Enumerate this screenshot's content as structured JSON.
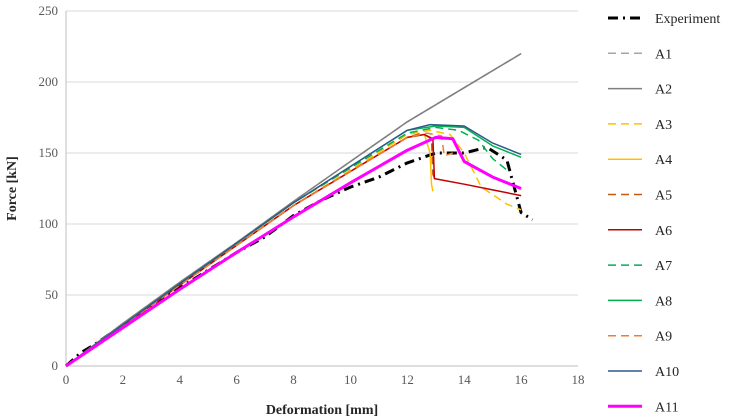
{
  "chart_data": {
    "type": "line",
    "title": "",
    "xlabel": "Deformation [mm]",
    "ylabel": "Force [kN]",
    "xlim": [
      0,
      18
    ],
    "ylim": [
      0,
      250
    ],
    "xticks": [
      "0",
      "2",
      "4",
      "6",
      "8",
      "10",
      "12",
      "14",
      "16",
      "18"
    ],
    "yticks": [
      "0",
      "50",
      "100",
      "150",
      "200",
      "250"
    ],
    "grid": "horizontal",
    "legend": "right",
    "series": [
      {
        "name": "Experiment",
        "color": "#000000",
        "dash": "dashdot",
        "width": 3,
        "x": [
          0,
          0.5,
          1,
          2,
          4,
          6,
          7,
          8,
          9,
          10,
          11,
          12,
          13,
          14,
          14.8,
          15.5,
          16,
          16.4
        ],
        "y": [
          0,
          9,
          15,
          29,
          55,
          80,
          91,
          106,
          117,
          126,
          133,
          143,
          150,
          150,
          154,
          145,
          108,
          103
        ]
      },
      {
        "name": "A1",
        "color": "#a6a6a6",
        "dash": "dash",
        "width": 1.5,
        "x": [
          0,
          2,
          4,
          6,
          8,
          10,
          12,
          14,
          16
        ],
        "y": [
          0,
          30,
          59,
          87,
          116,
          144,
          172,
          196,
          220
        ]
      },
      {
        "name": "A2",
        "color": "#7f7f7f",
        "dash": "solid",
        "width": 1.5,
        "x": [
          0,
          2,
          4,
          6,
          8,
          10,
          12,
          14,
          16
        ],
        "y": [
          0,
          30,
          59,
          87,
          116,
          144,
          172,
          196,
          220
        ]
      },
      {
        "name": "A3",
        "color": "#ffc000",
        "dash": "dash",
        "width": 1.5,
        "x": [
          0,
          4,
          8,
          12,
          12.8,
          13.5,
          14,
          14.6,
          15.5,
          16
        ],
        "y": [
          0,
          57,
          113,
          163,
          166,
          163,
          150,
          126,
          114,
          110
        ]
      },
      {
        "name": "A4",
        "color": "#ffc000",
        "dash": "solid",
        "width": 1.5,
        "x": [
          0,
          4,
          8,
          12,
          12.6,
          12.8,
          12.85,
          12.9
        ],
        "y": [
          0,
          57,
          113,
          161,
          163,
          150,
          128,
          123
        ]
      },
      {
        "name": "A5",
        "color": "#c55a11",
        "dash": "dash",
        "width": 1.5,
        "x": [
          0,
          4,
          8,
          12,
          12.5,
          12.85,
          12.9,
          13.0
        ],
        "y": [
          0,
          57,
          113,
          161,
          164,
          160,
          135,
          130
        ]
      },
      {
        "name": "A6",
        "color": "#c00000",
        "dash": "solid",
        "width": 1.5,
        "x": [
          0,
          4,
          8,
          12,
          12.6,
          12.9,
          12.95,
          14,
          15,
          16
        ],
        "y": [
          0,
          57,
          113,
          161,
          163,
          160,
          132,
          128,
          124,
          120
        ]
      },
      {
        "name": "A7",
        "color": "#00b050",
        "dash": "dash",
        "width": 1.5,
        "x": [
          0,
          4,
          8,
          12,
          13,
          13.8,
          14.5,
          15,
          15.5
        ],
        "y": [
          0,
          58,
          115,
          164,
          168,
          166,
          159,
          146,
          138
        ]
      },
      {
        "name": "A8",
        "color": "#00b050",
        "dash": "solid",
        "width": 1.5,
        "x": [
          0,
          4,
          8,
          12,
          13,
          14,
          15,
          16
        ],
        "y": [
          0,
          58,
          115,
          166,
          169,
          168,
          155,
          147
        ]
      },
      {
        "name": "A9",
        "color": "#ed7d31",
        "dash": "dash",
        "width": 1.5,
        "x": [
          0,
          4,
          8,
          12,
          12.7,
          13.2,
          13.3,
          13.6
        ],
        "y": [
          0,
          57,
          113,
          161,
          164,
          162,
          148,
          150
        ]
      },
      {
        "name": "A10",
        "color": "#2e5a8a",
        "dash": "solid",
        "width": 1.5,
        "x": [
          0,
          4,
          8,
          12,
          12.8,
          14,
          15,
          16
        ],
        "y": [
          0,
          58,
          115,
          166,
          170,
          169,
          157,
          149
        ]
      },
      {
        "name": "A11",
        "color": "#ff00ff",
        "dash": "solid",
        "width": 3,
        "x": [
          0,
          2,
          4,
          6,
          8,
          10,
          12,
          13,
          13.6,
          14,
          15,
          16
        ],
        "y": [
          0,
          27,
          54,
          80,
          105,
          129,
          152,
          161,
          160,
          144,
          133,
          125
        ]
      }
    ]
  }
}
